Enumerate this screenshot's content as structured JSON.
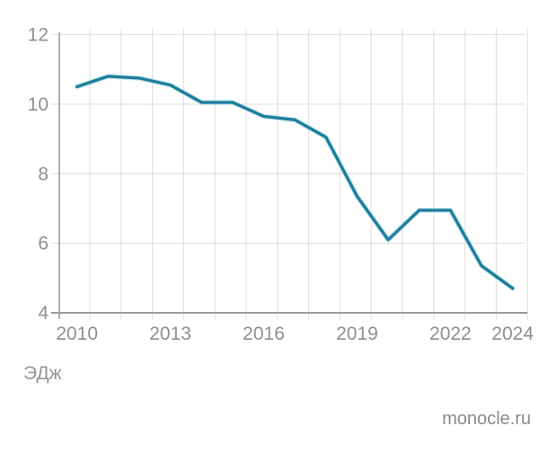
{
  "chart_data": {
    "type": "line",
    "title": "",
    "ylabel": "ЭДж",
    "source": "monocle.ru",
    "x": [
      2010,
      2011,
      2012,
      2013,
      2014,
      2015,
      2016,
      2017,
      2018,
      2019,
      2020,
      2021,
      2022,
      2023,
      2024
    ],
    "values": [
      10.5,
      10.8,
      10.75,
      10.55,
      10.05,
      10.05,
      9.65,
      9.55,
      9.05,
      7.35,
      6.1,
      6.95,
      6.95,
      5.35,
      4.7
    ],
    "y_ticks": [
      12,
      10,
      8,
      6,
      4
    ],
    "x_ticks": [
      2010,
      2013,
      2016,
      2019,
      2022,
      2024
    ],
    "ylim": [
      4,
      12
    ],
    "xlim": [
      2010,
      2024
    ],
    "grid": "on",
    "legend": "none",
    "colors": {
      "line": "#1f7e9d",
      "line_halo": "#aadfeb",
      "gridline": "#e2e2e2",
      "axis": "#9a9a9a",
      "tick_text": "#8f8f8f"
    }
  }
}
